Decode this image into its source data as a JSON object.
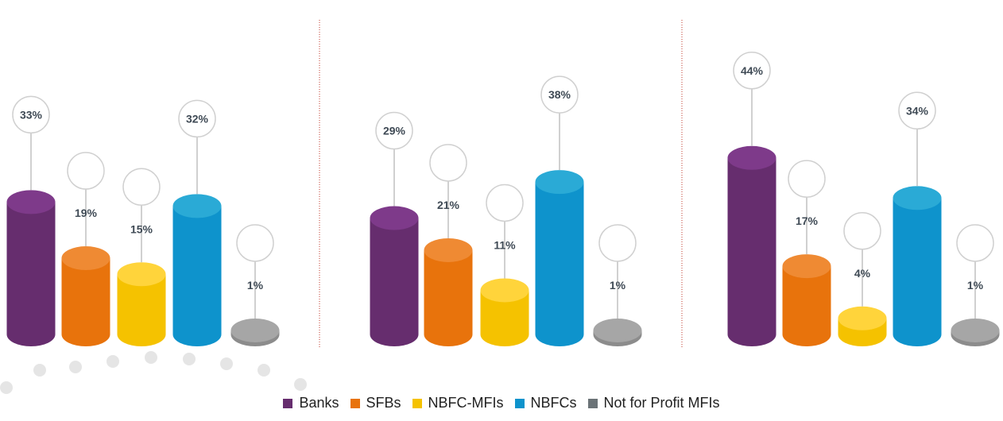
{
  "chart_data": [
    {
      "type": "bar",
      "categories": [
        "Banks",
        "SFBs",
        "NBFC-MFIs",
        "NBFCs",
        "Not for Profit MFIs"
      ],
      "values": [
        33,
        19,
        15,
        32,
        1
      ],
      "labels": [
        "33%",
        "19%",
        "15%",
        "32%",
        "1%"
      ],
      "ylim": [
        0,
        45
      ]
    },
    {
      "type": "bar",
      "categories": [
        "Banks",
        "SFBs",
        "NBFC-MFIs",
        "NBFCs",
        "Not for Profit MFIs"
      ],
      "values": [
        29,
        21,
        11,
        38,
        1
      ],
      "labels": [
        "29%",
        "21%",
        "11%",
        "38%",
        "1%"
      ],
      "ylim": [
        0,
        45
      ]
    },
    {
      "type": "bar",
      "categories": [
        "Banks",
        "SFBs",
        "NBFC-MFIs",
        "NBFCs",
        "Not for Profit MFIs"
      ],
      "values": [
        44,
        17,
        4,
        34,
        1
      ],
      "labels": [
        "44%",
        "17%",
        "4%",
        "34%",
        "1%"
      ],
      "ylim": [
        0,
        45
      ]
    }
  ],
  "legend": {
    "items": [
      {
        "label": "Banks",
        "color": "#662d6e"
      },
      {
        "label": "SFBs",
        "color": "#e8730c"
      },
      {
        "label": "NBFC-MFIs",
        "color": "#f5c200"
      },
      {
        "label": "NBFCs",
        "color": "#0e93cc"
      },
      {
        "label": "Not for Profit MFIs",
        "color": "#6b7377"
      }
    ]
  },
  "colors": {
    "bars": [
      "#662d6e",
      "#e8730c",
      "#f5c200",
      "#0e93cc",
      "#8c8c8c"
    ],
    "tops": [
      "#7e3a8a",
      "#ef8a33",
      "#ffd43b",
      "#2aaad6",
      "#a6a6a6"
    ],
    "divider": "#c0392b",
    "decor_dots": "#e5e5e5"
  }
}
